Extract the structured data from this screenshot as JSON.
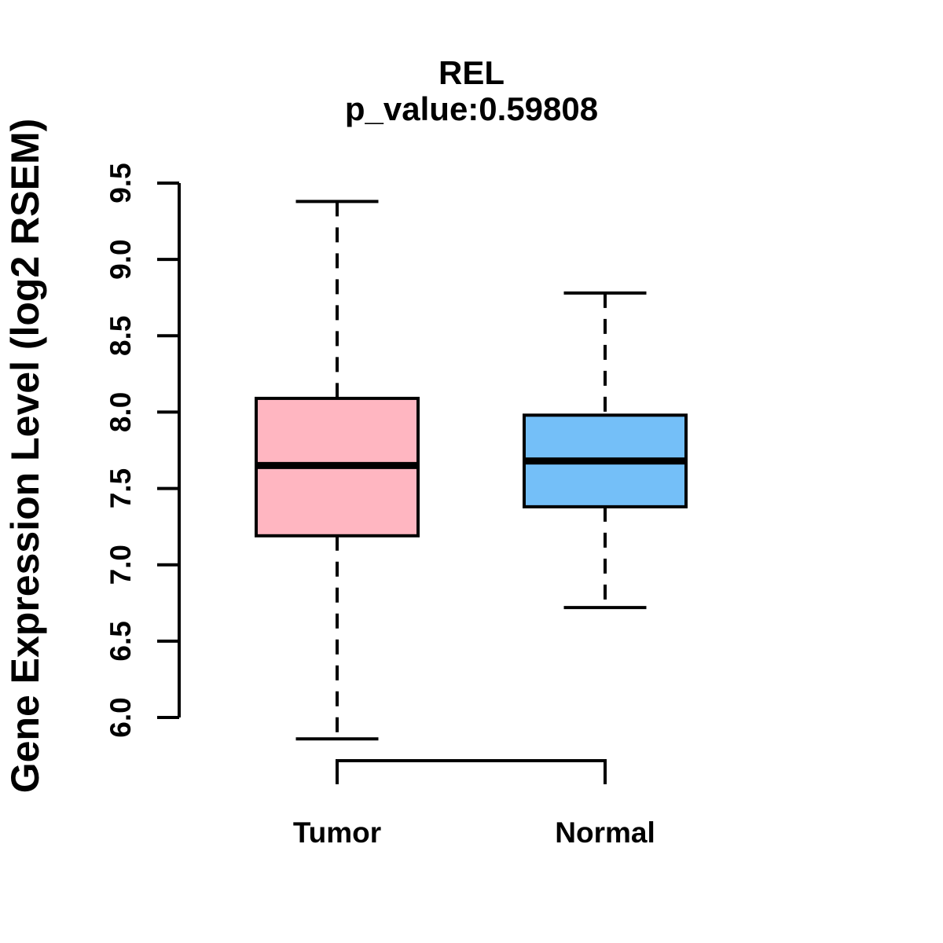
{
  "chart_data": {
    "type": "boxplot",
    "title": "REL",
    "subtitle": "p_value:0.59808",
    "p_value": "0.59808",
    "ylabel": "Gene Expression Level (log2 RSEM)",
    "ylim": [
      6.0,
      9.5
    ],
    "ytick_labels": [
      "6.0",
      "6.5",
      "7.0",
      "7.5",
      "8.0",
      "8.5",
      "9.0",
      "9.5"
    ],
    "grid": false,
    "legend": "none",
    "categories": [
      "Tumor",
      "Normal"
    ],
    "series": [
      {
        "name": "Tumor",
        "color": "#FFB6C1",
        "whisker_low": 5.86,
        "q1": 7.19,
        "median": 7.65,
        "q3": 8.09,
        "whisker_high": 9.38
      },
      {
        "name": "Normal",
        "color": "#74BFF8",
        "whisker_low": 6.72,
        "q1": 7.38,
        "median": 7.68,
        "q3": 7.98,
        "whisker_high": 8.78
      }
    ],
    "comparison_bracket": {
      "between": [
        "Tumor",
        "Normal"
      ]
    },
    "colors": {
      "box_border": "#000000",
      "median": "#000000",
      "axis": "#000000",
      "text": "#000000",
      "background": "#FFFFFF"
    }
  }
}
